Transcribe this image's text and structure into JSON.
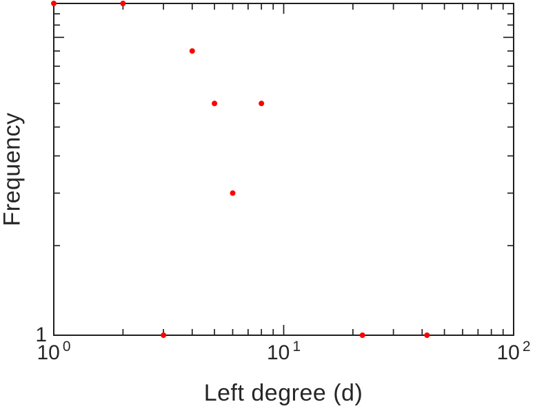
{
  "figure": {
    "background": "#ffffff",
    "frame_color": "#1f1f1f",
    "text_color": "#262626"
  },
  "chart_data": {
    "type": "scatter",
    "title": "",
    "xlabel": "Left degree (d)",
    "ylabel": "Frequency",
    "x_scale": "log",
    "y_scale": "log",
    "xlim": [
      1,
      100
    ],
    "ylim": [
      1,
      13
    ],
    "grid": false,
    "legend": null,
    "marker": {
      "shape": "circle",
      "color": "#ff0000",
      "radius": 4
    },
    "points": [
      {
        "x": 1,
        "y": 13
      },
      {
        "x": 2,
        "y": 13
      },
      {
        "x": 3,
        "y": 1
      },
      {
        "x": 4,
        "y": 9
      },
      {
        "x": 5,
        "y": 6
      },
      {
        "x": 6,
        "y": 3
      },
      {
        "x": 8,
        "y": 6
      },
      {
        "x": 22,
        "y": 1
      },
      {
        "x": 42,
        "y": 1
      }
    ],
    "x_ticks": {
      "major": [
        1,
        10,
        100
      ],
      "minor": [
        2,
        3,
        4,
        5,
        6,
        7,
        8,
        9,
        20,
        30,
        40,
        50,
        60,
        70,
        80,
        90
      ],
      "labels": [
        {
          "base": "10",
          "exp": "0",
          "value": 1
        },
        {
          "base": "10",
          "exp": "1",
          "value": 10
        },
        {
          "base": "10",
          "exp": "2",
          "value": 100
        }
      ]
    },
    "y_ticks": {
      "major": [
        1,
        10
      ],
      "minor": [
        2,
        3,
        4,
        5,
        6,
        7,
        8,
        9,
        11,
        12
      ],
      "labels": [
        {
          "text": "1",
          "value": 1
        }
      ]
    }
  }
}
